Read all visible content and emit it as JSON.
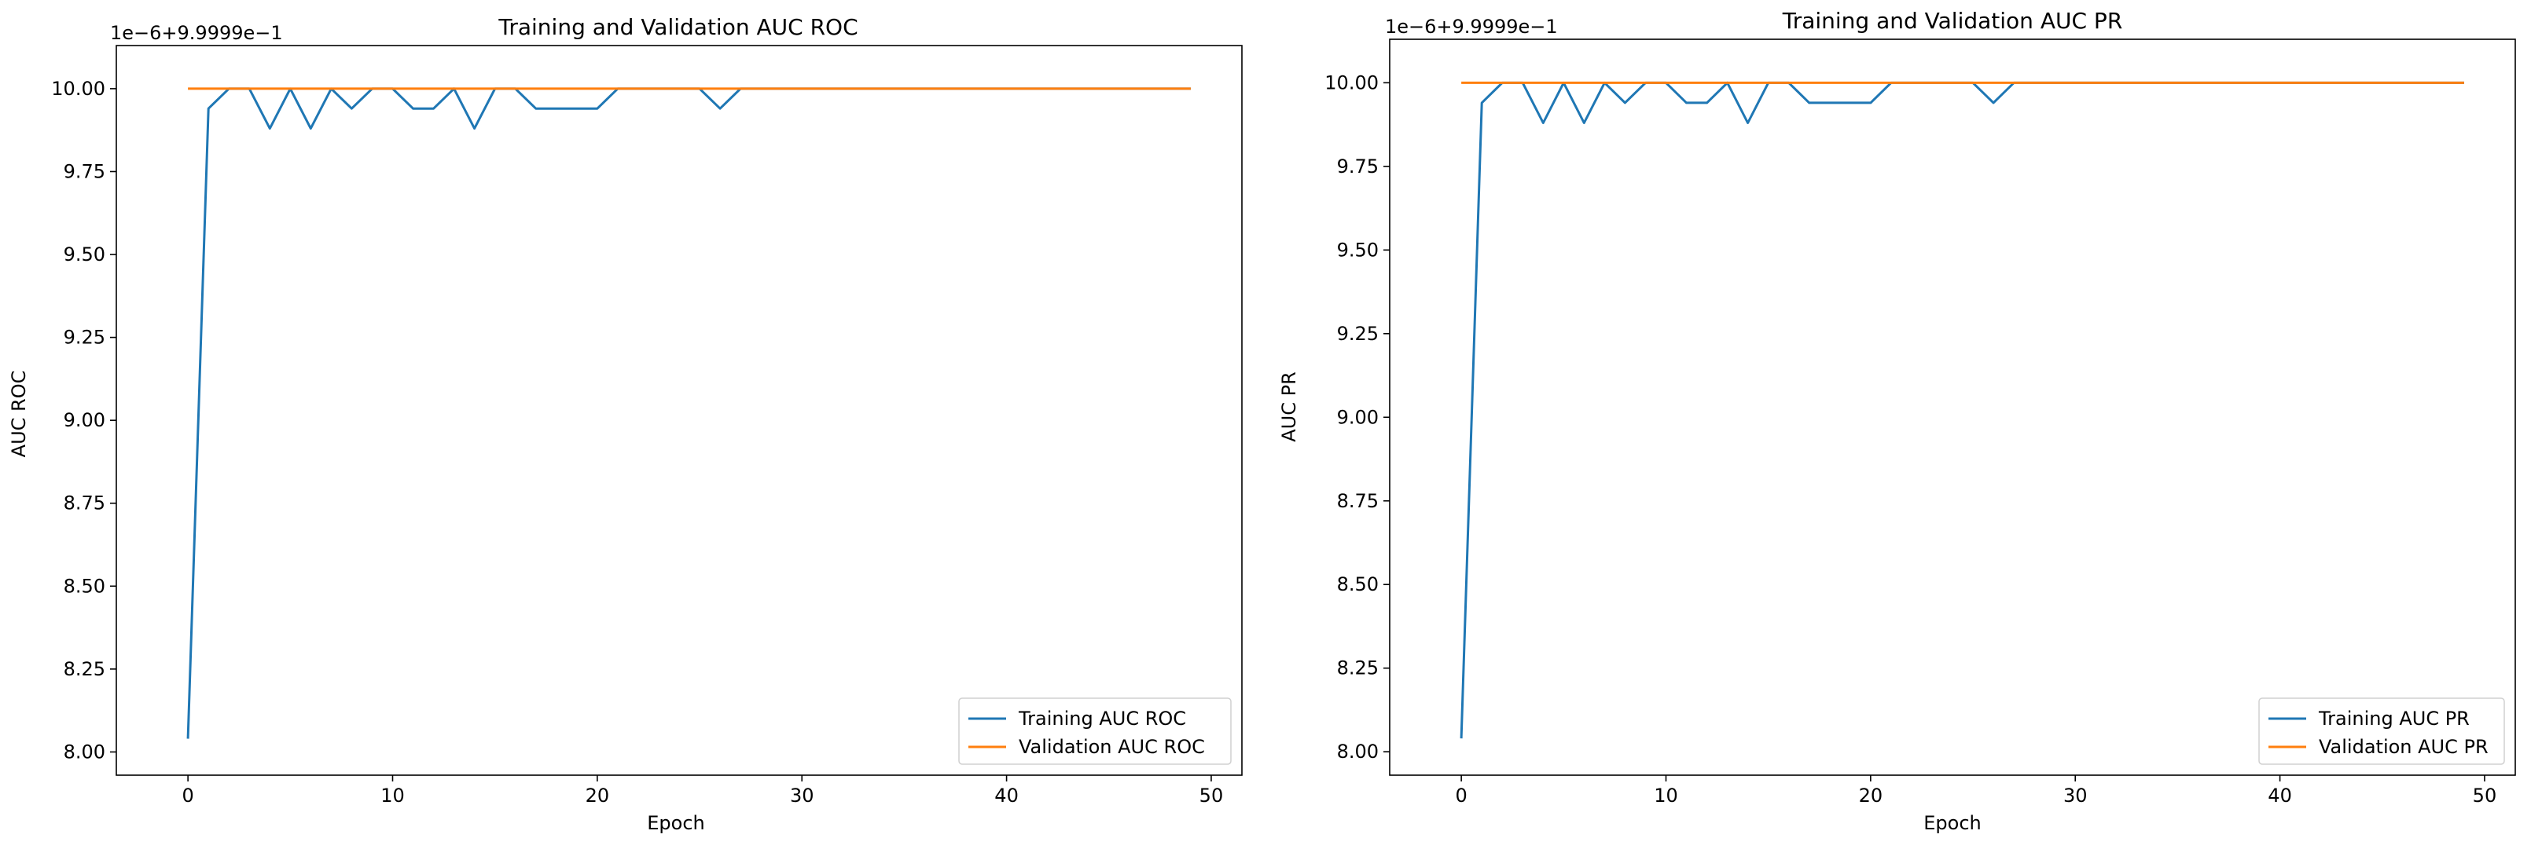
{
  "chart_data": [
    {
      "type": "line",
      "title": "Training and Validation AUC ROC",
      "xlabel": "Epoch",
      "ylabel": "AUC ROC",
      "y_offset_label": "1e−6+9.9999e−1",
      "xlim": [
        -3.5,
        51.5
      ],
      "ylim": [
        7.93,
        10.13
      ],
      "xticks": [
        0,
        10,
        20,
        30,
        40,
        50
      ],
      "xtick_labels": [
        "0",
        "10",
        "20",
        "30",
        "40",
        "50"
      ],
      "yticks": [
        8.0,
        8.25,
        8.5,
        8.75,
        9.0,
        9.25,
        9.5,
        9.75,
        10.0
      ],
      "ytick_labels": [
        "8.00",
        "8.25",
        "8.50",
        "8.75",
        "9.00",
        "9.25",
        "9.50",
        "9.75",
        "10.00"
      ],
      "legend_position": "lower-right",
      "grid": false,
      "x": [
        0,
        1,
        2,
        3,
        4,
        5,
        6,
        7,
        8,
        9,
        10,
        11,
        12,
        13,
        14,
        15,
        16,
        17,
        18,
        19,
        20,
        21,
        22,
        23,
        24,
        25,
        26,
        27,
        28,
        29,
        30,
        31,
        32,
        33,
        34,
        35,
        36,
        37,
        38,
        39,
        40,
        41,
        42,
        43,
        44,
        45,
        46,
        47,
        48,
        49
      ],
      "series": [
        {
          "name": "Training AUC ROC",
          "color": "#1f77b4",
          "values": [
            8.04,
            9.94,
            10.0,
            10.0,
            9.88,
            10.0,
            9.88,
            10.0,
            9.94,
            10.0,
            10.0,
            9.94,
            9.94,
            10.0,
            9.88,
            10.0,
            10.0,
            9.94,
            9.94,
            9.94,
            9.94,
            10.0,
            10.0,
            10.0,
            10.0,
            10.0,
            9.94,
            10.0,
            10.0,
            10.0,
            10.0,
            10.0,
            10.0,
            10.0,
            10.0,
            10.0,
            10.0,
            10.0,
            10.0,
            10.0,
            10.0,
            10.0,
            10.0,
            10.0,
            10.0,
            10.0,
            10.0,
            10.0,
            10.0,
            10.0
          ]
        },
        {
          "name": "Validation AUC ROC",
          "color": "#ff7f0e",
          "values": [
            10.0,
            10.0,
            10.0,
            10.0,
            10.0,
            10.0,
            10.0,
            10.0,
            10.0,
            10.0,
            10.0,
            10.0,
            10.0,
            10.0,
            10.0,
            10.0,
            10.0,
            10.0,
            10.0,
            10.0,
            10.0,
            10.0,
            10.0,
            10.0,
            10.0,
            10.0,
            10.0,
            10.0,
            10.0,
            10.0,
            10.0,
            10.0,
            10.0,
            10.0,
            10.0,
            10.0,
            10.0,
            10.0,
            10.0,
            10.0,
            10.0,
            10.0,
            10.0,
            10.0,
            10.0,
            10.0,
            10.0,
            10.0,
            10.0,
            10.0
          ]
        }
      ]
    },
    {
      "type": "line",
      "title": "Training and Validation AUC PR",
      "xlabel": "Epoch",
      "ylabel": "AUC PR",
      "y_offset_label": "1e−6+9.9999e−1",
      "xlim": [
        -3.5,
        51.5
      ],
      "ylim": [
        7.93,
        10.13
      ],
      "xticks": [
        0,
        10,
        20,
        30,
        40,
        50
      ],
      "xtick_labels": [
        "0",
        "10",
        "20",
        "30",
        "40",
        "50"
      ],
      "yticks": [
        8.0,
        8.25,
        8.5,
        8.75,
        9.0,
        9.25,
        9.5,
        9.75,
        10.0
      ],
      "ytick_labels": [
        "8.00",
        "8.25",
        "8.50",
        "8.75",
        "9.00",
        "9.25",
        "9.50",
        "9.75",
        "10.00"
      ],
      "legend_position": "lower-right",
      "grid": false,
      "x": [
        0,
        1,
        2,
        3,
        4,
        5,
        6,
        7,
        8,
        9,
        10,
        11,
        12,
        13,
        14,
        15,
        16,
        17,
        18,
        19,
        20,
        21,
        22,
        23,
        24,
        25,
        26,
        27,
        28,
        29,
        30,
        31,
        32,
        33,
        34,
        35,
        36,
        37,
        38,
        39,
        40,
        41,
        42,
        43,
        44,
        45,
        46,
        47,
        48,
        49
      ],
      "series": [
        {
          "name": "Training AUC PR",
          "color": "#1f77b4",
          "values": [
            8.04,
            9.94,
            10.0,
            10.0,
            9.88,
            10.0,
            9.88,
            10.0,
            9.94,
            10.0,
            10.0,
            9.94,
            9.94,
            10.0,
            9.88,
            10.0,
            10.0,
            9.94,
            9.94,
            9.94,
            9.94,
            10.0,
            10.0,
            10.0,
            10.0,
            10.0,
            9.94,
            10.0,
            10.0,
            10.0,
            10.0,
            10.0,
            10.0,
            10.0,
            10.0,
            10.0,
            10.0,
            10.0,
            10.0,
            10.0,
            10.0,
            10.0,
            10.0,
            10.0,
            10.0,
            10.0,
            10.0,
            10.0,
            10.0,
            10.0
          ]
        },
        {
          "name": "Validation AUC PR",
          "color": "#ff7f0e",
          "values": [
            10.0,
            10.0,
            10.0,
            10.0,
            10.0,
            10.0,
            10.0,
            10.0,
            10.0,
            10.0,
            10.0,
            10.0,
            10.0,
            10.0,
            10.0,
            10.0,
            10.0,
            10.0,
            10.0,
            10.0,
            10.0,
            10.0,
            10.0,
            10.0,
            10.0,
            10.0,
            10.0,
            10.0,
            10.0,
            10.0,
            10.0,
            10.0,
            10.0,
            10.0,
            10.0,
            10.0,
            10.0,
            10.0,
            10.0,
            10.0,
            10.0,
            10.0,
            10.0,
            10.0,
            10.0,
            10.0,
            10.0,
            10.0,
            10.0,
            10.0
          ]
        }
      ]
    }
  ]
}
